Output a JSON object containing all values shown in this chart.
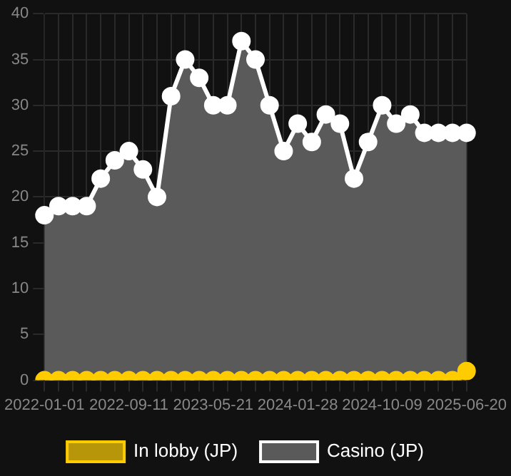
{
  "chart_data": {
    "type": "area",
    "categories": [
      "2022-01-01",
      null,
      null,
      null,
      null,
      null,
      "2022-09-11",
      null,
      null,
      null,
      null,
      null,
      "2023-05-21",
      null,
      null,
      null,
      null,
      null,
      "2024-01-28",
      null,
      null,
      null,
      null,
      null,
      "2024-10-09",
      null,
      null,
      null,
      null,
      null,
      "2025-06-20"
    ],
    "series": [
      {
        "name": "In lobby (JP)",
        "color": "#ffcc00",
        "values": [
          0,
          0,
          0,
          0,
          0,
          0,
          0,
          0,
          0,
          0,
          0,
          0,
          0,
          0,
          0,
          0,
          0,
          0,
          0,
          0,
          0,
          0,
          0,
          0,
          0,
          0,
          0,
          0,
          0,
          0,
          1
        ]
      },
      {
        "name": "Casino (JP)",
        "color": "#ffffff",
        "values": [
          18,
          19,
          19,
          19,
          22,
          24,
          25,
          23,
          20,
          31,
          35,
          33,
          30,
          30,
          37,
          35,
          30,
          25,
          28,
          26,
          29,
          28,
          22,
          26,
          30,
          28,
          29,
          27,
          27,
          27,
          27
        ]
      }
    ],
    "ylim": [
      0,
      40
    ],
    "yticks": [
      0,
      5,
      10,
      15,
      20,
      25,
      30,
      35,
      40
    ],
    "grid": true,
    "legend": "bottom",
    "marker": "circle"
  }
}
